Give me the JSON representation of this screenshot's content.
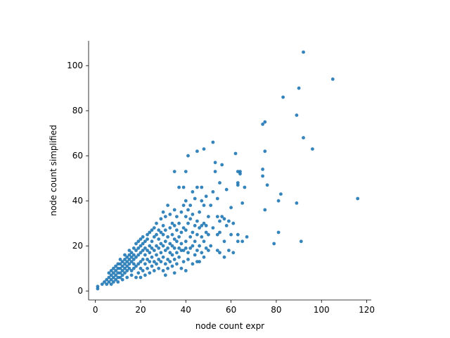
{
  "chart_data": {
    "type": "scatter",
    "title": "",
    "xlabel": "node count expr",
    "ylabel": "node count simplified",
    "xlim": [
      -3,
      122
    ],
    "ylim": [
      -4,
      111
    ],
    "xticks": [
      0,
      20,
      40,
      60,
      80,
      100,
      120
    ],
    "yticks": [
      0,
      20,
      40,
      60,
      80,
      100
    ],
    "grid": false,
    "color": "#1f77b4",
    "series": [
      {
        "points": [
          [
            1,
            1
          ],
          [
            1,
            2
          ],
          [
            3,
            3
          ],
          [
            4,
            4
          ],
          [
            5,
            3
          ],
          [
            5,
            5
          ],
          [
            6,
            4
          ],
          [
            6,
            6
          ],
          [
            6,
            8
          ],
          [
            7,
            3
          ],
          [
            7,
            5
          ],
          [
            7,
            7
          ],
          [
            7,
            9
          ],
          [
            8,
            4
          ],
          [
            8,
            6
          ],
          [
            8,
            8
          ],
          [
            8,
            10
          ],
          [
            9,
            5
          ],
          [
            9,
            7
          ],
          [
            9,
            9
          ],
          [
            9,
            11
          ],
          [
            10,
            4
          ],
          [
            10,
            6
          ],
          [
            10,
            8
          ],
          [
            10,
            10
          ],
          [
            10,
            12
          ],
          [
            11,
            6
          ],
          [
            11,
            8
          ],
          [
            11,
            10
          ],
          [
            11,
            12
          ],
          [
            11,
            14
          ],
          [
            12,
            5
          ],
          [
            12,
            7
          ],
          [
            12,
            9
          ],
          [
            12,
            11
          ],
          [
            12,
            13
          ],
          [
            13,
            8
          ],
          [
            13,
            10
          ],
          [
            13,
            12
          ],
          [
            13,
            14
          ],
          [
            13,
            16
          ],
          [
            14,
            6
          ],
          [
            14,
            9
          ],
          [
            14,
            11
          ],
          [
            14,
            13
          ],
          [
            14,
            15
          ],
          [
            15,
            10
          ],
          [
            15,
            12
          ],
          [
            15,
            14
          ],
          [
            15,
            16
          ],
          [
            15,
            18
          ],
          [
            16,
            7
          ],
          [
            16,
            9
          ],
          [
            16,
            13
          ],
          [
            16,
            15
          ],
          [
            16,
            17
          ],
          [
            17,
            10
          ],
          [
            17,
            12
          ],
          [
            17,
            14
          ],
          [
            17,
            16
          ],
          [
            17,
            19
          ],
          [
            18,
            6
          ],
          [
            18,
            11
          ],
          [
            18,
            15
          ],
          [
            18,
            18
          ],
          [
            18,
            21
          ],
          [
            19,
            8
          ],
          [
            19,
            12
          ],
          [
            19,
            16
          ],
          [
            19,
            19
          ],
          [
            19,
            22
          ],
          [
            20,
            6
          ],
          [
            20,
            10
          ],
          [
            20,
            13
          ],
          [
            20,
            17
          ],
          [
            20,
            20
          ],
          [
            20,
            23
          ],
          [
            21,
            9
          ],
          [
            21,
            14
          ],
          [
            21,
            18
          ],
          [
            21,
            21
          ],
          [
            21,
            24
          ],
          [
            22,
            7
          ],
          [
            22,
            12
          ],
          [
            22,
            16
          ],
          [
            22,
            19
          ],
          [
            22,
            22
          ],
          [
            23,
            10
          ],
          [
            23,
            14
          ],
          [
            23,
            18
          ],
          [
            23,
            23
          ],
          [
            23,
            25
          ],
          [
            24,
            8
          ],
          [
            24,
            13
          ],
          [
            24,
            17
          ],
          [
            24,
            20
          ],
          [
            24,
            26
          ],
          [
            25,
            11
          ],
          [
            25,
            15
          ],
          [
            25,
            19
          ],
          [
            25,
            22
          ],
          [
            25,
            27
          ],
          [
            26,
            9
          ],
          [
            26,
            13
          ],
          [
            26,
            18
          ],
          [
            26,
            24
          ],
          [
            26,
            28
          ],
          [
            27,
            12
          ],
          [
            27,
            16
          ],
          [
            27,
            20
          ],
          [
            27,
            25
          ],
          [
            27,
            30
          ],
          [
            28,
            10
          ],
          [
            28,
            14
          ],
          [
            28,
            19
          ],
          [
            28,
            23
          ],
          [
            28,
            27
          ],
          [
            29,
            13
          ],
          [
            29,
            17
          ],
          [
            29,
            21
          ],
          [
            29,
            26
          ],
          [
            29,
            32
          ],
          [
            30,
            9
          ],
          [
            30,
            15
          ],
          [
            30,
            20
          ],
          [
            30,
            25
          ],
          [
            30,
            29
          ],
          [
            30,
            35
          ],
          [
            31,
            7
          ],
          [
            31,
            12
          ],
          [
            31,
            18
          ],
          [
            31,
            22
          ],
          [
            31,
            27
          ],
          [
            31,
            33
          ],
          [
            32,
            10
          ],
          [
            32,
            14
          ],
          [
            32,
            19
          ],
          [
            32,
            24
          ],
          [
            32,
            38
          ],
          [
            33,
            13
          ],
          [
            33,
            17
          ],
          [
            33,
            21
          ],
          [
            33,
            28
          ],
          [
            33,
            34
          ],
          [
            34,
            11
          ],
          [
            34,
            16
          ],
          [
            34,
            20
          ],
          [
            34,
            25
          ],
          [
            34,
            30
          ],
          [
            35,
            8
          ],
          [
            35,
            14
          ],
          [
            35,
            19
          ],
          [
            35,
            23
          ],
          [
            35,
            29
          ],
          [
            35,
            36
          ],
          [
            35,
            53
          ],
          [
            36,
            12
          ],
          [
            36,
            17
          ],
          [
            36,
            22
          ],
          [
            36,
            27
          ],
          [
            36,
            33
          ],
          [
            37,
            15
          ],
          [
            37,
            19
          ],
          [
            37,
            24
          ],
          [
            37,
            30
          ],
          [
            37,
            46
          ],
          [
            38,
            10
          ],
          [
            38,
            18
          ],
          [
            38,
            21
          ],
          [
            38,
            26
          ],
          [
            38,
            35
          ],
          [
            39,
            13
          ],
          [
            39,
            18
          ],
          [
            39,
            28
          ],
          [
            39,
            38
          ],
          [
            39,
            46
          ],
          [
            40,
            9
          ],
          [
            40,
            19
          ],
          [
            40,
            22
          ],
          [
            40,
            27
          ],
          [
            40,
            33
          ],
          [
            40,
            40
          ],
          [
            40,
            53
          ],
          [
            41,
            14
          ],
          [
            41,
            17
          ],
          [
            41,
            30
          ],
          [
            41,
            36
          ],
          [
            41,
            60
          ],
          [
            42,
            19
          ],
          [
            42,
            24
          ],
          [
            42,
            32
          ],
          [
            42,
            38
          ],
          [
            43,
            12
          ],
          [
            43,
            20
          ],
          [
            43,
            26
          ],
          [
            43,
            34
          ],
          [
            43,
            44
          ],
          [
            44,
            16
          ],
          [
            44,
            22
          ],
          [
            44,
            29
          ],
          [
            44,
            41
          ],
          [
            45,
            13
          ],
          [
            45,
            18
          ],
          [
            45,
            25
          ],
          [
            45,
            31
          ],
          [
            45,
            46
          ],
          [
            45,
            62
          ],
          [
            46,
            13
          ],
          [
            46,
            20
          ],
          [
            46,
            28
          ],
          [
            46,
            35
          ],
          [
            47,
            17
          ],
          [
            47,
            24
          ],
          [
            47,
            29
          ],
          [
            47,
            40
          ],
          [
            47,
            46
          ],
          [
            48,
            15
          ],
          [
            48,
            22
          ],
          [
            48,
            30
          ],
          [
            48,
            38
          ],
          [
            48,
            63
          ],
          [
            49,
            19
          ],
          [
            49,
            26
          ],
          [
            49,
            29
          ],
          [
            49,
            42
          ],
          [
            50,
            18
          ],
          [
            50,
            25
          ],
          [
            50,
            33
          ],
          [
            51,
            20
          ],
          [
            51,
            38
          ],
          [
            52,
            28
          ],
          [
            52,
            44
          ],
          [
            52,
            66
          ],
          [
            53,
            53
          ],
          [
            53,
            57
          ],
          [
            54,
            18
          ],
          [
            54,
            25
          ],
          [
            54,
            33
          ],
          [
            54,
            41
          ],
          [
            55,
            17
          ],
          [
            55,
            26
          ],
          [
            55,
            31
          ],
          [
            55,
            48
          ],
          [
            56,
            33
          ],
          [
            56,
            56
          ],
          [
            57,
            15
          ],
          [
            57,
            22
          ],
          [
            57,
            32
          ],
          [
            58,
            29
          ],
          [
            58,
            45
          ],
          [
            59,
            18
          ],
          [
            59,
            31
          ],
          [
            60,
            25
          ],
          [
            60,
            37
          ],
          [
            61,
            17
          ],
          [
            61,
            30
          ],
          [
            62,
            61
          ],
          [
            63,
            22
          ],
          [
            63,
            25
          ],
          [
            63,
            47
          ],
          [
            63,
            48
          ],
          [
            63,
            53
          ],
          [
            64,
            52
          ],
          [
            64,
            53
          ],
          [
            65,
            22
          ],
          [
            65,
            39
          ],
          [
            66,
            46
          ],
          [
            67,
            24
          ],
          [
            74,
            51
          ],
          [
            74,
            54
          ],
          [
            74,
            74
          ],
          [
            75,
            36
          ],
          [
            75,
            62
          ],
          [
            75,
            75
          ],
          [
            76,
            47
          ],
          [
            79,
            21
          ],
          [
            81,
            26
          ],
          [
            81,
            40
          ],
          [
            82,
            43
          ],
          [
            83,
            86
          ],
          [
            89,
            39
          ],
          [
            89,
            78
          ],
          [
            90,
            90
          ],
          [
            91,
            22
          ],
          [
            92,
            68
          ],
          [
            92,
            106
          ],
          [
            96,
            63
          ],
          [
            105,
            94
          ],
          [
            116,
            41
          ]
        ]
      }
    ]
  }
}
